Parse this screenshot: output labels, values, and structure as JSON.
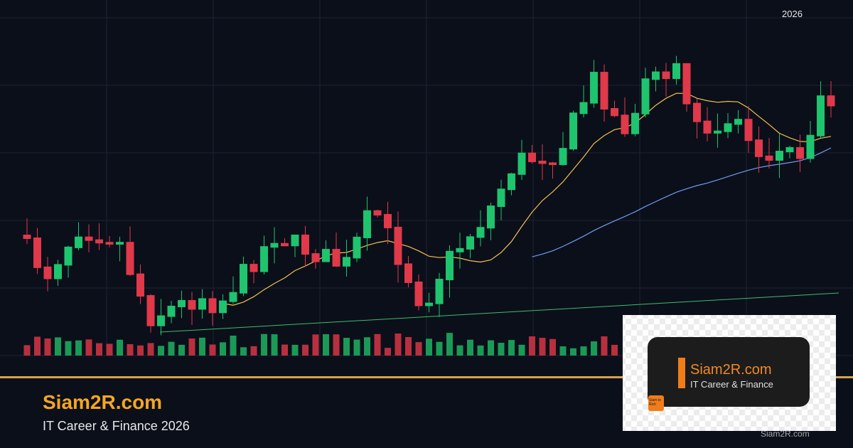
{
  "header": {
    "year": "2026"
  },
  "footer": {
    "title": "Siam2R.com",
    "subtitle": "IT Career & Finance 2026"
  },
  "logo": {
    "title": "Siam2R.com",
    "subtitle": "IT Career & Finance",
    "badge": "Siam to Rich",
    "watermark": "Siam2R.com"
  }
}
